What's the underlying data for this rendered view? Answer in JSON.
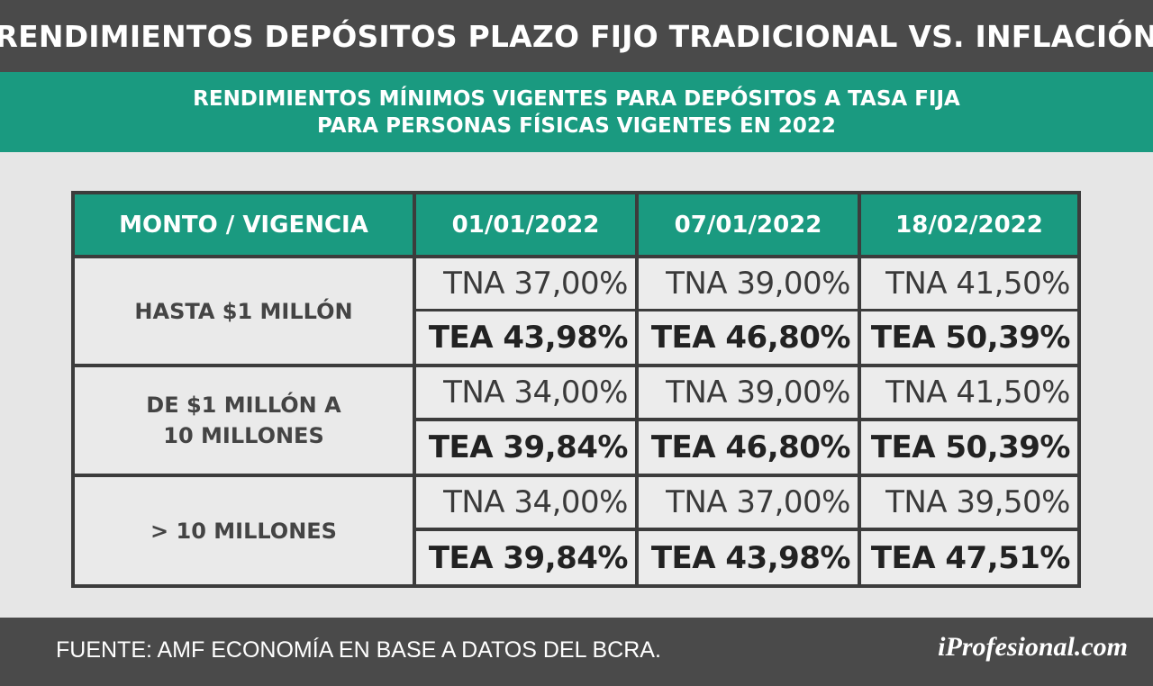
{
  "title": "RENDIMIENTOS DEPÓSITOS PLAZO FIJO TRADICIONAL VS. INFLACIÓN",
  "subtitle": {
    "line1": "RENDIMIENTOS MÍNIMOS VIGENTES PARA DEPÓSITOS A TASA FIJA",
    "line2": "PARA PERSONAS FÍSICAS VIGENTES EN 2022"
  },
  "table": {
    "headers": [
      "MONTO / VIGENCIA",
      "01/01/2022",
      "07/01/2022",
      "18/02/2022"
    ],
    "rows": [
      {
        "label": [
          "HASTA $1 MILLÓN"
        ],
        "tna": [
          "TNA 37,00%",
          "TNA 39,00%",
          "TNA 41,50%"
        ],
        "tea": [
          "TEA 43,98%",
          "TEA 46,80%",
          "TEA 50,39%"
        ]
      },
      {
        "label": [
          "DE $1 MILLÓN A",
          "10 MILLONES"
        ],
        "tna": [
          "TNA 34,00%",
          "TNA 39,00%",
          "TNA 41,50%"
        ],
        "tea": [
          "TEA 39,84%",
          "TEA 46,80%",
          "TEA 50,39%"
        ]
      },
      {
        "label": [
          "> 10 MILLONES"
        ],
        "tna": [
          "TNA 34,00%",
          "TNA 37,00%",
          "TNA 39,50%"
        ],
        "tea": [
          "TEA 39,84%",
          "TEA 43,98%",
          "TEA 47,51%"
        ]
      }
    ]
  },
  "footer": {
    "source": "FUENTE: AMF ECONOMÍA EN BASE A DATOS DEL BCRA.",
    "logo": "iProfesional.com"
  },
  "colors": {
    "dark_bar": "#4a4a4a",
    "accent_green": "#1a9a80",
    "background": "#e6e6e6"
  }
}
